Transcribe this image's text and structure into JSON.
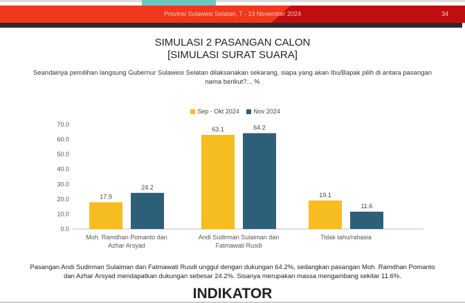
{
  "header": {
    "subtitle": "Provinsi Sulawesi Selatan, 7 - 13 November 2024",
    "page": "34"
  },
  "title_line1": "SIMULASI 2 PASANGAN CALON",
  "title_line2": "[SIMULASI SURAT SUARA]",
  "question": "Seandainya pemilihan langsung Gubernur Sulawesi Selatan dilaksanakan sekarang, siapa yang akan Ibu/Bapak pilih di antara pasangan nama berikut?... %",
  "chart_data": {
    "type": "bar",
    "categories": [
      "Moh. Ramdhan Pomanto dan Azhar Arsyad",
      "Andi Sudirman Sulaiman dan Fatmawati Rusdi",
      "Tidak tahu/rahasia"
    ],
    "series": [
      {
        "name": "Sep - Okt 2024",
        "color": "#f5bd1f",
        "values": [
          17.9,
          63.1,
          19.1
        ]
      },
      {
        "name": "Nov 2024",
        "color": "#2e5f78",
        "values": [
          24.2,
          64.2,
          11.6
        ]
      }
    ],
    "ylim": [
      0,
      70
    ],
    "yticks": [
      "0.0",
      "10.0",
      "20.0",
      "30.0",
      "40.0",
      "50.0",
      "60.0",
      "70.0"
    ],
    "legend": "top",
    "grid": false
  },
  "footer": "Pasangan Andi Sudirman Sulaiman dan Fatmawati Rusdi unggul dengan dukungan 64.2%, sedangkan pasangan Moh. Ramdhan Pomanto dan Azhar Arsyad mendapatkan dukungan sebesar 24.2%. Sisanya merupakan massa mengambang sekitar 11.6%.",
  "logo": "INDIKATOR"
}
